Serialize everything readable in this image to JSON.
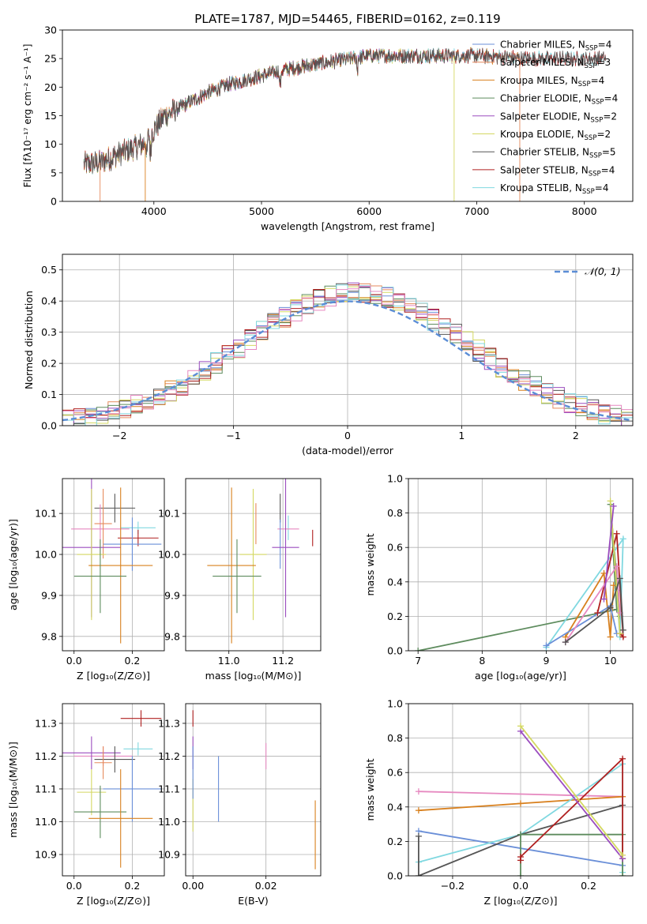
{
  "figure": {
    "title": "PLATE=1787, MJD=54465, FIBERID=0162, z=0.119"
  },
  "colors": {
    "chabrier_miles": "#6a8fd8",
    "salpeter_miles": "#e68a5c",
    "kroupa_miles": "#d8801e",
    "chabrier_elodie": "#5e8c5e",
    "salpeter_elodie": "#9b4dbf",
    "kroupa_elodie": "#d4d862",
    "chabrier_stelib": "#555555",
    "salpeter_stelib": "#b02020",
    "kroupa_stelib": "#80d8e0",
    "extra_pink": "#e689c0"
  },
  "chart_data": [
    {
      "id": "spectrum",
      "type": "line",
      "xlabel": "wavelength [Angstrom, rest frame]",
      "ylabel": "Flux [fλ10⁻¹⁷ erg cm⁻² s⁻¹ A⁻¹]",
      "xlim": [
        3150,
        8450
      ],
      "ylim": [
        0,
        30
      ],
      "xticks": [
        4000,
        5000,
        6000,
        7000,
        8000
      ],
      "yticks": [
        0,
        5,
        10,
        15,
        20,
        25,
        30
      ],
      "legend": [
        {
          "label": "Chabrier MILES, N",
          "sub": "SSP",
          "tail": "=4",
          "color": "chabrier_miles"
        },
        {
          "label": "Salpeter MILES, N",
          "sub": "SSP",
          "tail": "=3",
          "color": "salpeter_miles"
        },
        {
          "label": "Kroupa MILES, N",
          "sub": "SSP",
          "tail": "=4",
          "color": "kroupa_miles"
        },
        {
          "label": "Chabrier ELODIE, N",
          "sub": "SSP",
          "tail": "=4",
          "color": "chabrier_elodie"
        },
        {
          "label": "Salpeter ELODIE, N",
          "sub": "SSP",
          "tail": "=2",
          "color": "salpeter_elodie"
        },
        {
          "label": "Kroupa ELODIE, N",
          "sub": "SSP",
          "tail": "=2",
          "color": "kroupa_elodie"
        },
        {
          "label": "Chabrier STELIB, N",
          "sub": "SSP",
          "tail": "=5",
          "color": "chabrier_stelib"
        },
        {
          "label": "Salpeter STELIB, N",
          "sub": "SSP",
          "tail": "=4",
          "color": "salpeter_stelib"
        },
        {
          "label": "Kroupa STELIB, N",
          "sub": "SSP",
          "tail": "=4",
          "color": "kroupa_stelib"
        }
      ],
      "continuum": [
        [
          3350,
          6.5
        ],
        [
          3500,
          6.8
        ],
        [
          3700,
          8.5
        ],
        [
          3900,
          10.0
        ],
        [
          4000,
          12.5
        ],
        [
          4100,
          15.0
        ],
        [
          4300,
          17.0
        ],
        [
          4500,
          19.0
        ],
        [
          4700,
          20.5
        ],
        [
          5000,
          22.0
        ],
        [
          5200,
          23.0
        ],
        [
          5500,
          24.0
        ],
        [
          6000,
          25.5
        ],
        [
          6500,
          25.5
        ],
        [
          7000,
          25.5
        ],
        [
          7500,
          25.0
        ],
        [
          8000,
          25.0
        ],
        [
          8200,
          25.0
        ]
      ]
    },
    {
      "id": "residual-histogram",
      "type": "bar",
      "xlabel": "(data-model)/error",
      "ylabel": "Normed distribution",
      "xlim": [
        -2.5,
        2.5
      ],
      "ylim": [
        0,
        0.55
      ],
      "xticks": [
        -2,
        -1,
        0,
        1,
        2
      ],
      "yticks": [
        0.0,
        0.1,
        0.2,
        0.3,
        0.4,
        0.5
      ],
      "legend": "𝒩(0, 1)",
      "bin_width": 0.1,
      "grid": true
    },
    {
      "id": "age-vs-Z",
      "type": "scatter",
      "xlabel": "Z [log₁₀(Z/Z⊙)]",
      "ylabel": "age  [log₁₀(age/yr)]",
      "xlim": [
        -0.04,
        0.31
      ],
      "ylim": [
        9.765,
        10.185
      ],
      "xticks": [
        0.0,
        0.2
      ],
      "yticks": [
        9.8,
        9.9,
        10.0,
        10.1
      ],
      "points": [
        {
          "x": 0.22,
          "y": 10.065,
          "xerr": 0.06,
          "yerr": 0.015,
          "color": "kroupa_stelib"
        },
        {
          "x": 0.22,
          "y": 10.04,
          "xerr": 0.07,
          "yerr": 0.02,
          "color": "salpeter_stelib"
        },
        {
          "x": 0.14,
          "y": 10.113,
          "xerr": 0.07,
          "yerr": 0.035,
          "color": "chabrier_stelib"
        },
        {
          "x": 0.09,
          "y": 10.062,
          "xerr": 0.1,
          "yerr": 0.06,
          "color": "extra_pink"
        },
        {
          "x": 0.1,
          "y": 10.075,
          "xerr": 0.03,
          "yerr": 0.085,
          "color": "salpeter_miles"
        },
        {
          "x": 0.2,
          "y": 10.025,
          "xerr": 0.1,
          "yerr": 0.065,
          "color": "chabrier_miles"
        },
        {
          "x": 0.06,
          "y": 10.017,
          "xerr": 0.1,
          "yerr": 0.17,
          "color": "salpeter_elodie"
        },
        {
          "x": 0.06,
          "y": 10.0,
          "xerr": 0.05,
          "yerr": 0.16,
          "color": "kroupa_elodie"
        },
        {
          "x": 0.16,
          "y": 9.973,
          "xerr": 0.11,
          "yerr": 0.19,
          "color": "kroupa_miles"
        },
        {
          "x": 0.09,
          "y": 9.947,
          "xerr": 0.09,
          "yerr": 0.09,
          "color": "chabrier_elodie"
        }
      ]
    },
    {
      "id": "age-vs-mass",
      "type": "scatter",
      "xlabel": "mass [log₁₀(M/M⊙)]",
      "xlim": [
        10.84,
        11.34
      ],
      "ylim": [
        9.765,
        10.185
      ],
      "xticks": [
        11.0,
        11.2
      ],
      "yticks": [
        9.8,
        9.9,
        10.0,
        10.1
      ],
      "points": [
        {
          "x": 11.31,
          "y": 10.04,
          "xerr": 0.0,
          "yerr": 0.02,
          "color": "salpeter_stelib"
        },
        {
          "x": 11.22,
          "y": 10.065,
          "xerr": 0.0,
          "yerr": 0.03,
          "color": "kroupa_stelib"
        },
        {
          "x": 11.19,
          "y": 10.113,
          "xerr": 0.0,
          "yerr": 0.035,
          "color": "chabrier_stelib"
        },
        {
          "x": 11.22,
          "y": 10.062,
          "xerr": 0.04,
          "yerr": 0.0,
          "color": "extra_pink"
        },
        {
          "x": 11.1,
          "y": 10.075,
          "xerr": 0.0,
          "yerr": 0.05,
          "color": "salpeter_miles"
        },
        {
          "x": 11.19,
          "y": 10.025,
          "xerr": 0.0,
          "yerr": 0.06,
          "color": "chabrier_miles"
        },
        {
          "x": 11.21,
          "y": 10.017,
          "xerr": 0.05,
          "yerr": 0.17,
          "color": "salpeter_elodie"
        },
        {
          "x": 11.09,
          "y": 10.0,
          "xerr": 0.05,
          "yerr": 0.16,
          "color": "kroupa_elodie"
        },
        {
          "x": 11.01,
          "y": 9.973,
          "xerr": 0.09,
          "yerr": 0.19,
          "color": "kroupa_miles"
        },
        {
          "x": 11.03,
          "y": 9.947,
          "xerr": 0.09,
          "yerr": 0.09,
          "color": "chabrier_elodie"
        }
      ]
    },
    {
      "id": "weight-vs-age",
      "type": "line",
      "xlabel": "age  [log₁₀(age/yr)]",
      "ylabel": "mass weight",
      "xlim": [
        6.85,
        10.35
      ],
      "ylim": [
        0,
        1.0
      ],
      "xticks": [
        7,
        8,
        9,
        10
      ],
      "yticks": [
        0.0,
        0.2,
        0.4,
        0.6,
        0.8,
        1.0
      ],
      "series": [
        {
          "color": "chabrier_elodie",
          "x": [
            7.0,
            10.1,
            10.0,
            10.15
          ],
          "y": [
            0.0,
            0.24,
            0.85,
            0.2
          ]
        },
        {
          "color": "kroupa_stelib",
          "x": [
            9.0,
            10.2,
            10.15,
            10.1
          ],
          "y": [
            0.02,
            0.65,
            0.08,
            0.35
          ]
        },
        {
          "color": "kroupa_miles",
          "x": [
            9.3,
            9.9,
            10.0,
            10.05
          ],
          "y": [
            0.08,
            0.45,
            0.08,
            0.38
          ]
        },
        {
          "color": "chabrier_miles",
          "x": [
            9.0,
            10.0,
            10.1
          ],
          "y": [
            0.03,
            0.26,
            0.1
          ]
        },
        {
          "color": "salpeter_stelib",
          "x": [
            9.8,
            10.1,
            10.2,
            10.15
          ],
          "y": [
            0.22,
            0.68,
            0.08,
            0.1
          ]
        },
        {
          "color": "kroupa_elodie",
          "x": [
            10.0,
            10.15
          ],
          "y": [
            0.87,
            0.1
          ]
        },
        {
          "color": "extra_pink",
          "x": [
            9.3,
            10.1,
            10.15
          ],
          "y": [
            0.05,
            0.49,
            0.22
          ]
        },
        {
          "color": "chabrier_stelib",
          "x": [
            9.3,
            10.0,
            10.15,
            10.2
          ],
          "y": [
            0.05,
            0.25,
            0.42,
            0.12
          ]
        },
        {
          "color": "salpeter_elodie",
          "x": [
            9.9,
            10.05
          ],
          "y": [
            0.3,
            0.84
          ]
        }
      ]
    },
    {
      "id": "mass-vs-Z",
      "type": "scatter",
      "xlabel": "Z [log₁₀(Z/Z⊙)]",
      "ylabel": "mass [log₁₀(M/M⊙)]",
      "xlim": [
        -0.04,
        0.31
      ],
      "ylim": [
        10.835,
        11.36
      ],
      "xticks": [
        0.0,
        0.2
      ],
      "yticks": [
        10.9,
        11.0,
        11.1,
        11.2,
        11.3
      ],
      "points": [
        {
          "x": 0.23,
          "y": 11.315,
          "xerr": 0.07,
          "yerr": 0.025,
          "color": "salpeter_stelib"
        },
        {
          "x": 0.22,
          "y": 11.222,
          "xerr": 0.05,
          "yerr": 0.02,
          "color": "kroupa_stelib"
        },
        {
          "x": 0.1,
          "y": 11.2,
          "xerr": 0.1,
          "yerr": 0.03,
          "color": "extra_pink"
        },
        {
          "x": 0.06,
          "y": 11.21,
          "xerr": 0.1,
          "yerr": 0.05,
          "color": "salpeter_elodie"
        },
        {
          "x": 0.14,
          "y": 11.19,
          "xerr": 0.07,
          "yerr": 0.04,
          "color": "chabrier_stelib"
        },
        {
          "x": 0.1,
          "y": 11.18,
          "xerr": 0.03,
          "yerr": 0.05,
          "color": "salpeter_miles"
        },
        {
          "x": 0.2,
          "y": 11.1,
          "xerr": 0.1,
          "yerr": 0.1,
          "color": "chabrier_miles"
        },
        {
          "x": 0.06,
          "y": 11.09,
          "xerr": 0.05,
          "yerr": 0.07,
          "color": "kroupa_elodie"
        },
        {
          "x": 0.09,
          "y": 11.03,
          "xerr": 0.09,
          "yerr": 0.08,
          "color": "chabrier_elodie"
        },
        {
          "x": 0.16,
          "y": 11.01,
          "xerr": 0.11,
          "yerr": 0.15,
          "color": "kroupa_miles"
        }
      ]
    },
    {
      "id": "mass-vs-ebv",
      "type": "scatter",
      "xlabel": "E(B-V)",
      "xlim": [
        -0.002,
        0.035
      ],
      "ylim": [
        10.835,
        11.36
      ],
      "xticks": [
        0.0,
        0.02
      ],
      "yticks": [
        10.9,
        11.0,
        11.1,
        11.2,
        11.3
      ],
      "points": [
        {
          "x": 0.0,
          "y": 11.315,
          "xerr": 0,
          "yerr": 0.025,
          "color": "salpeter_stelib"
        },
        {
          "x": 0.0,
          "y": 11.21,
          "xerr": 0,
          "yerr": 0.05,
          "color": "salpeter_elodie"
        },
        {
          "x": 0.0,
          "y": 11.05,
          "xerr": 0,
          "yerr": 0.08,
          "color": "kroupa_elodie"
        },
        {
          "x": 0.0,
          "y": 11.15,
          "xerr": 0,
          "yerr": 0.08,
          "color": "chabrier_miles"
        },
        {
          "x": 0.007,
          "y": 11.1,
          "xerr": 0,
          "yerr": 0.1,
          "color": "chabrier_miles"
        },
        {
          "x": 0.02,
          "y": 11.2,
          "xerr": 0,
          "yerr": 0.04,
          "color": "extra_pink"
        },
        {
          "x": 0.0335,
          "y": 10.96,
          "xerr": 0,
          "yerr": 0.105,
          "color": "kroupa_miles"
        }
      ]
    },
    {
      "id": "weight-vs-Z",
      "type": "line",
      "xlabel": "Z [log₁₀(Z/Z⊙)]",
      "ylabel": "mass weight",
      "xlim": [
        -0.33,
        0.33
      ],
      "ylim": [
        0,
        1.0
      ],
      "xticks": [
        -0.2,
        0.0,
        0.2
      ],
      "yticks": [
        0.0,
        0.2,
        0.4,
        0.6,
        0.8,
        1.0
      ],
      "series": [
        {
          "color": "extra_pink",
          "x": [
            -0.3,
            0.3
          ],
          "y": [
            0.49,
            0.46
          ]
        },
        {
          "color": "kroupa_miles",
          "x": [
            -0.3,
            0.0,
            0.3
          ],
          "y": [
            0.38,
            0.42,
            0.46
          ]
        },
        {
          "color": "chabrier_miles",
          "x": [
            -0.3,
            0.3
          ],
          "y": [
            0.26,
            0.06
          ]
        },
        {
          "color": "kroupa_stelib",
          "x": [
            -0.3,
            0.0,
            0.3,
            0.3
          ],
          "y": [
            0.08,
            0.24,
            0.65,
            0.02
          ]
        },
        {
          "color": "chabrier_stelib",
          "x": [
            -0.3,
            -0.3,
            0.0,
            0.3
          ],
          "y": [
            0.23,
            0.0,
            0.24,
            0.41
          ]
        },
        {
          "color": "chabrier_elodie",
          "x": [
            0.0,
            0.0,
            0.3,
            0.3
          ],
          "y": [
            0.0,
            0.24,
            0.24,
            0.0
          ]
        },
        {
          "color": "salpeter_stelib",
          "x": [
            0.0,
            0.0,
            0.3,
            0.3
          ],
          "y": [
            0.09,
            0.11,
            0.68,
            0.1
          ]
        },
        {
          "color": "salpeter_elodie",
          "x": [
            0.0,
            0.3
          ],
          "y": [
            0.84,
            0.1
          ]
        },
        {
          "color": "kroupa_elodie",
          "x": [
            0.0,
            0.3
          ],
          "y": [
            0.87,
            0.12
          ]
        }
      ]
    }
  ]
}
